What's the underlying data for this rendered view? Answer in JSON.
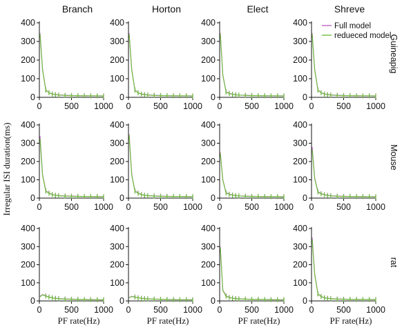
{
  "figure": {
    "ylabel": "Irregular ISI duration(ms)",
    "xlabel": "PF rate(Hz)",
    "columns": [
      "Branch",
      "Horton",
      "Elect",
      "Shreve"
    ],
    "rows": [
      "Guineapig",
      "Mouse",
      "rat"
    ],
    "legend": [
      "Full model",
      "redueced model"
    ],
    "colors": {
      "full": "#c264c8",
      "reduced": "#6fbf3f",
      "axis": "#111111"
    }
  },
  "chart_data": [
    {
      "type": "line",
      "row": "Guineapig",
      "col": "Branch",
      "xlim": [
        0,
        1000
      ],
      "ylim": [
        0,
        400
      ],
      "xticks": [
        0,
        500,
        1000
      ],
      "yticks": [
        0,
        100,
        200,
        300,
        400
      ],
      "x": [
        10,
        50,
        100,
        150,
        200,
        250,
        300,
        400,
        500,
        600,
        700,
        800,
        900,
        1000
      ],
      "series": [
        {
          "name": "Full model",
          "values": [
            345,
            150,
            40,
            25,
            18,
            15,
            13,
            11,
            10,
            9,
            9,
            8,
            8,
            8
          ]
        },
        {
          "name": "redueced model",
          "values": [
            340,
            148,
            38,
            24,
            17,
            14,
            12,
            10,
            9,
            9,
            8,
            8,
            8,
            7
          ]
        }
      ]
    },
    {
      "type": "line",
      "row": "Guineapig",
      "col": "Horton",
      "xlim": [
        0,
        1000
      ],
      "ylim": [
        0,
        400
      ],
      "xticks": [
        0,
        500,
        1000
      ],
      "yticks": [
        0,
        100,
        200,
        300,
        400
      ],
      "x": [
        10,
        50,
        100,
        150,
        200,
        250,
        300,
        400,
        500,
        600,
        700,
        800,
        900,
        1000
      ],
      "series": [
        {
          "name": "Full model",
          "values": [
            345,
            150,
            40,
            25,
            18,
            15,
            13,
            11,
            10,
            9,
            9,
            8,
            8,
            8
          ]
        },
        {
          "name": "redueced model",
          "values": [
            340,
            148,
            38,
            24,
            17,
            14,
            12,
            10,
            9,
            9,
            8,
            8,
            8,
            7
          ]
        }
      ]
    },
    {
      "type": "line",
      "row": "Guineapig",
      "col": "Elect",
      "xlim": [
        0,
        1000
      ],
      "ylim": [
        0,
        400
      ],
      "xticks": [
        0,
        500,
        1000
      ],
      "yticks": [
        0,
        100,
        200,
        300,
        400
      ],
      "x": [
        10,
        50,
        100,
        150,
        200,
        250,
        300,
        400,
        500,
        600,
        700,
        800,
        900,
        1000
      ],
      "series": [
        {
          "name": "Full model",
          "values": [
            345,
            120,
            30,
            22,
            17,
            14,
            12,
            11,
            10,
            9,
            9,
            8,
            8,
            8
          ]
        },
        {
          "name": "redueced model",
          "values": [
            340,
            118,
            28,
            20,
            16,
            13,
            12,
            10,
            9,
            9,
            8,
            8,
            8,
            7
          ]
        }
      ]
    },
    {
      "type": "line",
      "row": "Guineapig",
      "col": "Shreve",
      "xlim": [
        0,
        1000
      ],
      "ylim": [
        0,
        400
      ],
      "xticks": [
        0,
        500,
        1000
      ],
      "yticks": [
        0,
        100,
        200,
        300,
        400
      ],
      "x": [
        10,
        50,
        100,
        150,
        200,
        250,
        300,
        400,
        500,
        600,
        700,
        800,
        900,
        1000
      ],
      "series": [
        {
          "name": "Full model",
          "values": [
            345,
            150,
            40,
            25,
            18,
            15,
            13,
            11,
            10,
            9,
            9,
            8,
            8,
            8
          ]
        },
        {
          "name": "redueced model",
          "values": [
            340,
            148,
            38,
            24,
            17,
            14,
            12,
            10,
            9,
            9,
            8,
            8,
            8,
            7
          ]
        }
      ]
    },
    {
      "type": "line",
      "row": "Mouse",
      "col": "Branch",
      "xlim": [
        0,
        1000
      ],
      "ylim": [
        0,
        400
      ],
      "xticks": [
        0,
        500,
        1000
      ],
      "yticks": [
        0,
        100,
        200,
        300,
        400
      ],
      "x": [
        10,
        50,
        100,
        150,
        200,
        250,
        300,
        400,
        500,
        600,
        700,
        800,
        900,
        1000
      ],
      "series": [
        {
          "name": "Full model",
          "values": [
            340,
            130,
            40,
            28,
            20,
            16,
            14,
            12,
            11,
            10,
            9,
            9,
            9,
            8
          ]
        },
        {
          "name": "redueced model",
          "values": [
            325,
            125,
            38,
            26,
            19,
            15,
            13,
            11,
            10,
            9,
            9,
            9,
            8,
            8
          ]
        }
      ]
    },
    {
      "type": "line",
      "row": "Mouse",
      "col": "Horton",
      "xlim": [
        0,
        1000
      ],
      "ylim": [
        0,
        400
      ],
      "xticks": [
        0,
        500,
        1000
      ],
      "yticks": [
        0,
        100,
        200,
        300,
        400
      ],
      "x": [
        10,
        50,
        100,
        150,
        200,
        250,
        300,
        400,
        500,
        600,
        700,
        800,
        900,
        1000
      ],
      "series": [
        {
          "name": "Full model",
          "values": [
            350,
            130,
            40,
            28,
            20,
            16,
            14,
            12,
            11,
            10,
            9,
            9,
            9,
            8
          ]
        },
        {
          "name": "redueced model",
          "values": [
            345,
            128,
            38,
            26,
            19,
            15,
            13,
            11,
            10,
            9,
            9,
            9,
            8,
            8
          ]
        }
      ]
    },
    {
      "type": "line",
      "row": "Mouse",
      "col": "Elect",
      "xlim": [
        0,
        1000
      ],
      "ylim": [
        0,
        400
      ],
      "xticks": [
        0,
        500,
        1000
      ],
      "yticks": [
        0,
        100,
        200,
        300,
        400
      ],
      "x": [
        10,
        50,
        100,
        150,
        200,
        250,
        300,
        400,
        500,
        600,
        700,
        800,
        900,
        1000
      ],
      "series": [
        {
          "name": "Full model",
          "values": [
            250,
            100,
            30,
            22,
            17,
            14,
            12,
            11,
            10,
            9,
            9,
            8,
            8,
            8
          ]
        },
        {
          "name": "redueced model",
          "values": [
            245,
            98,
            28,
            20,
            16,
            13,
            12,
            10,
            9,
            9,
            8,
            8,
            8,
            7
          ]
        }
      ]
    },
    {
      "type": "line",
      "row": "Mouse",
      "col": "Shreve",
      "xlim": [
        0,
        1000
      ],
      "ylim": [
        0,
        400
      ],
      "xticks": [
        0,
        500,
        1000
      ],
      "yticks": [
        0,
        100,
        200,
        300,
        400
      ],
      "x": [
        10,
        50,
        100,
        150,
        200,
        250,
        300,
        400,
        500,
        600,
        700,
        800,
        900,
        1000
      ],
      "series": [
        {
          "name": "Full model",
          "values": [
            280,
            110,
            35,
            25,
            19,
            15,
            13,
            11,
            10,
            9,
            9,
            9,
            8,
            8
          ]
        },
        {
          "name": "redueced model",
          "values": [
            265,
            105,
            33,
            23,
            18,
            14,
            12,
            10,
            9,
            9,
            8,
            8,
            8,
            7
          ]
        }
      ]
    },
    {
      "type": "line",
      "row": "rat",
      "col": "Branch",
      "xlim": [
        0,
        1000
      ],
      "ylim": [
        0,
        400
      ],
      "xticks": [
        0,
        500,
        1000
      ],
      "yticks": [
        0,
        100,
        200,
        300,
        400
      ],
      "x": [
        10,
        50,
        100,
        150,
        200,
        250,
        300,
        400,
        500,
        600,
        700,
        800,
        900,
        1000
      ],
      "series": [
        {
          "name": "Full model",
          "values": [
            25,
            35,
            28,
            22,
            18,
            15,
            13,
            11,
            10,
            9,
            8,
            8,
            7,
            7
          ]
        },
        {
          "name": "redueced model",
          "values": [
            23,
            33,
            27,
            21,
            17,
            14,
            12,
            10,
            9,
            8,
            8,
            7,
            7,
            7
          ]
        }
      ]
    },
    {
      "type": "line",
      "row": "rat",
      "col": "Horton",
      "xlim": [
        0,
        1000
      ],
      "ylim": [
        0,
        400
      ],
      "xticks": [
        0,
        500,
        1000
      ],
      "yticks": [
        0,
        100,
        200,
        300,
        400
      ],
      "x": [
        10,
        50,
        100,
        150,
        200,
        250,
        300,
        400,
        500,
        600,
        700,
        800,
        900,
        1000
      ],
      "series": [
        {
          "name": "Full model",
          "values": [
            18,
            25,
            22,
            18,
            15,
            13,
            12,
            10,
            9,
            8,
            8,
            7,
            7,
            7
          ]
        },
        {
          "name": "redueced model",
          "values": [
            17,
            24,
            21,
            17,
            14,
            12,
            11,
            10,
            9,
            8,
            7,
            7,
            7,
            6
          ]
        }
      ]
    },
    {
      "type": "line",
      "row": "rat",
      "col": "Elect",
      "xlim": [
        0,
        1000
      ],
      "ylim": [
        0,
        400
      ],
      "xticks": [
        0,
        500,
        1000
      ],
      "yticks": [
        0,
        100,
        200,
        300,
        400
      ],
      "x": [
        10,
        50,
        100,
        150,
        200,
        250,
        300,
        400,
        500,
        600,
        700,
        800,
        900,
        1000
      ],
      "series": [
        {
          "name": "Full model",
          "values": [
            300,
            60,
            28,
            20,
            16,
            13,
            12,
            10,
            9,
            9,
            8,
            8,
            7,
            7
          ]
        },
        {
          "name": "redueced model",
          "values": [
            295,
            58,
            26,
            19,
            15,
            12,
            11,
            10,
            9,
            8,
            8,
            7,
            7,
            7
          ]
        }
      ]
    },
    {
      "type": "line",
      "row": "rat",
      "col": "Shreve",
      "xlim": [
        0,
        1000
      ],
      "ylim": [
        0,
        400
      ],
      "xticks": [
        0,
        500,
        1000
      ],
      "yticks": [
        0,
        100,
        200,
        300,
        400
      ],
      "x": [
        10,
        50,
        100,
        150,
        200,
        250,
        300,
        400,
        500,
        600,
        700,
        800,
        900,
        1000
      ],
      "series": [
        {
          "name": "Full model",
          "values": [
            350,
            150,
            40,
            25,
            18,
            15,
            13,
            11,
            10,
            9,
            9,
            8,
            8,
            8
          ]
        },
        {
          "name": "redueced model",
          "values": [
            340,
            145,
            38,
            24,
            17,
            14,
            12,
            10,
            9,
            9,
            8,
            8,
            8,
            7
          ]
        }
      ]
    }
  ]
}
